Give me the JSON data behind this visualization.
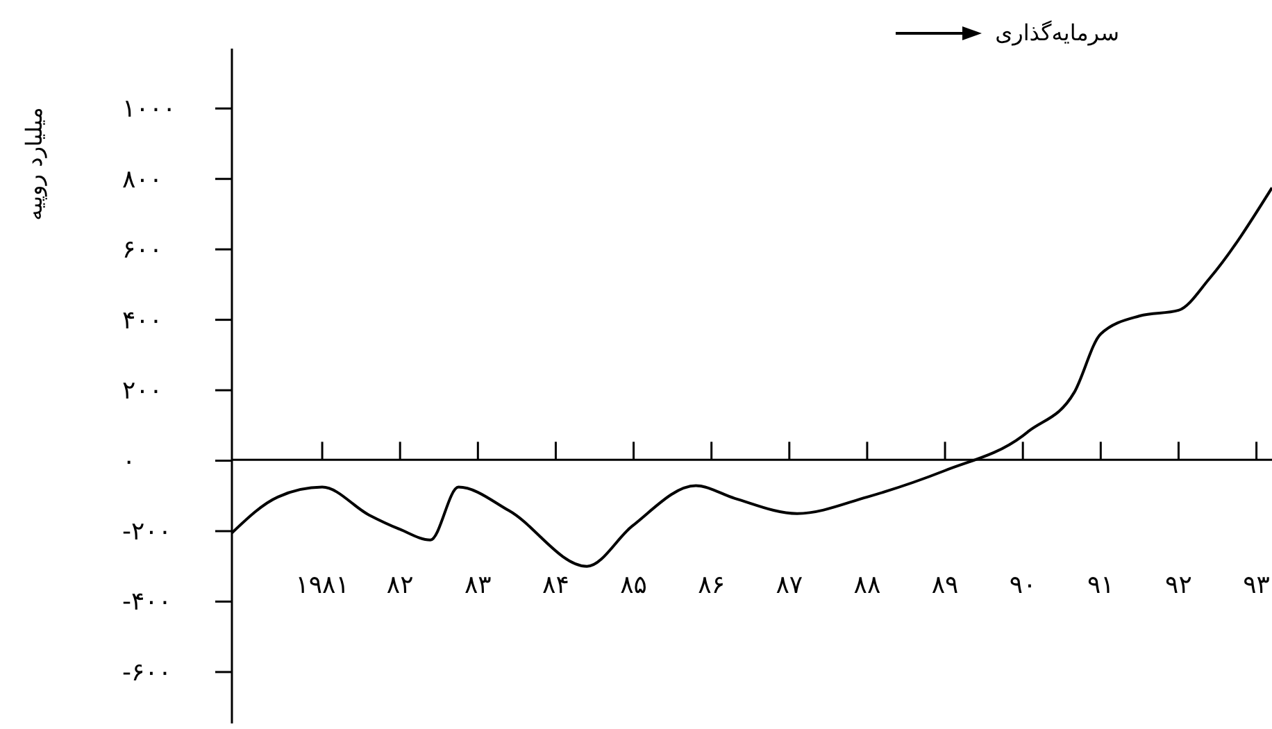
{
  "chart_data": {
    "type": "line",
    "ylabel": "میلیارد روپیه",
    "legend": "top right",
    "marker": "none",
    "line_style": "solid",
    "x": [
      1979.84,
      1980.43,
      1981,
      1981.6,
      1982,
      1982.39,
      1982.75,
      1983.4,
      1984.4,
      1984.98,
      1985.8,
      1986.3,
      1987.1,
      1988,
      1989,
      1990,
      1990.07,
      1990.66,
      1991,
      1991.5,
      1992,
      1992.4,
      1993.2
    ],
    "series": [
      {
        "name": "سرمایه‌گذاری",
        "color": "#000000",
        "values": [
          -205,
          -103,
          -75,
          -154,
          -195,
          -225,
          -75,
          -142,
          -300,
          -186,
          -71,
          -107,
          -150,
          -103,
          -28,
          71,
          83,
          194,
          360,
          411,
          427,
          518,
          775
        ]
      }
    ],
    "xlim": [
      1979.84,
      1993.2
    ],
    "ylim": [
      -746,
      1170
    ],
    "xticks": [
      {
        "value": 1981,
        "label": "۱۹۸۱"
      },
      {
        "value": 1982,
        "label": "۸۲"
      },
      {
        "value": 1983,
        "label": "۸۳"
      },
      {
        "value": 1984,
        "label": "۸۴"
      },
      {
        "value": 1985,
        "label": "۸۵"
      },
      {
        "value": 1986,
        "label": "۸۶"
      },
      {
        "value": 1987,
        "label": "۸۷"
      },
      {
        "value": 1988,
        "label": "۸۸"
      },
      {
        "value": 1989,
        "label": "۸۹"
      },
      {
        "value": 1990,
        "label": "۹۰"
      },
      {
        "value": 1991,
        "label": "۹۱"
      },
      {
        "value": 1992,
        "label": "۹۲"
      },
      {
        "value": 1993,
        "label": "۹۳"
      }
    ],
    "yticks": [
      {
        "value": -600,
        "label": "-۶۰۰"
      },
      {
        "value": -400,
        "label": "-۴۰۰"
      },
      {
        "value": -200,
        "label": "-۲۰۰"
      },
      {
        "value": 0,
        "label": "۰"
      },
      {
        "value": 200,
        "label": "۲۰۰"
      },
      {
        "value": 400,
        "label": "۴۰۰"
      },
      {
        "value": 600,
        "label": "۶۰۰"
      },
      {
        "value": 800,
        "label": "۸۰۰"
      },
      {
        "value": 1000,
        "label": "۱۰۰۰"
      }
    ]
  }
}
